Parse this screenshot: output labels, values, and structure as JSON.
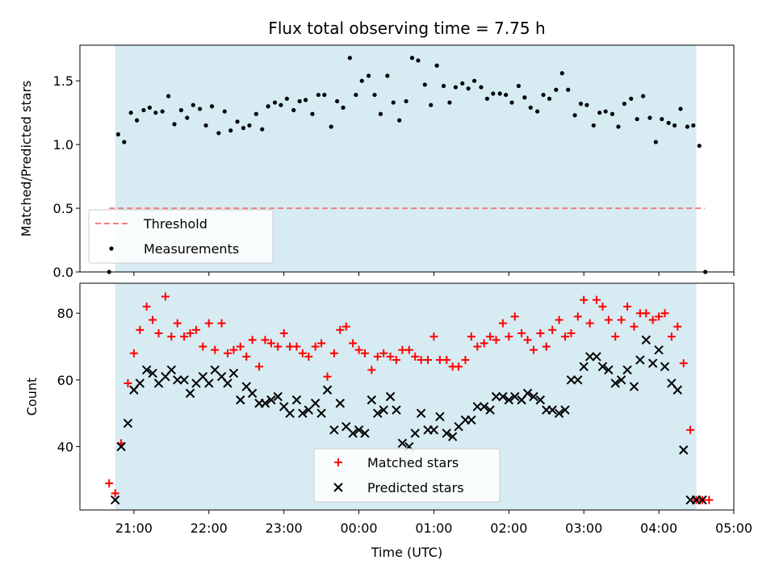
{
  "chart_data": {
    "type": "scatter",
    "title": "Flux total observing time = 7.75 h",
    "xlabel": "Time (UTC)",
    "x_ticks": [
      "21:00",
      "22:00",
      "23:00",
      "00:00",
      "01:00",
      "02:00",
      "03:00",
      "04:00",
      "05:00"
    ],
    "x_range_hours": [
      20.28,
      29.0
    ],
    "observing_window_hours": [
      20.75,
      28.5
    ],
    "colors": {
      "shade": "#add8e6",
      "threshold": "#f08080",
      "matched": "#ff0000",
      "predicted": "#000000",
      "measurements": "#000000"
    },
    "panels": [
      {
        "ylabel": "Matched/Predicted stars",
        "ylim": [
          0,
          1.78
        ],
        "y_ticks": [
          "0.0",
          "0.5",
          "1.0",
          "1.5"
        ],
        "y_tick_values": [
          0,
          0.5,
          1.0,
          1.5
        ],
        "legend": {
          "placement": "lower-left",
          "entries": [
            "Threshold",
            "Measurements"
          ]
        },
        "series": [
          {
            "name": "Threshold",
            "kind": "hline",
            "y": 0.5,
            "x": [
              20.67,
              29.0
            ]
          },
          {
            "name": "Measurements",
            "kind": "scatter",
            "marker": "dot",
            "x": [
              20.67,
              20.79,
              20.87,
              20.96,
              21.04,
              21.13,
              21.21,
              21.29,
              21.38,
              21.46,
              21.54,
              21.63,
              21.71,
              21.79,
              21.88,
              21.96,
              22.04,
              22.13,
              22.21,
              22.29,
              22.38,
              22.46,
              22.54,
              22.63,
              22.71,
              22.79,
              22.88,
              22.96,
              23.04,
              23.13,
              23.21,
              23.29,
              23.38,
              23.46,
              23.54,
              23.63,
              23.71,
              23.79,
              23.88,
              23.96,
              24.04,
              24.13,
              24.21,
              24.29,
              24.38,
              24.46,
              24.54,
              24.63,
              24.71,
              24.79,
              24.88,
              24.96,
              25.04,
              25.13,
              25.21,
              25.29,
              25.38,
              25.46,
              25.54,
              25.63,
              25.71,
              25.79,
              25.88,
              25.96,
              26.04,
              26.13,
              26.21,
              26.29,
              26.38,
              26.46,
              26.54,
              26.63,
              26.71,
              26.79,
              26.88,
              26.96,
              27.04,
              27.13,
              27.21,
              27.29,
              27.38,
              27.46,
              27.54,
              27.63,
              27.71,
              27.79,
              27.88,
              27.96,
              28.04,
              28.13,
              28.21,
              28.29,
              28.38,
              28.46,
              28.54,
              28.62
            ],
            "y": [
              0,
              1.08,
              1.02,
              1.25,
              1.19,
              1.27,
              1.29,
              1.25,
              1.26,
              1.38,
              1.16,
              1.27,
              1.21,
              1.31,
              1.28,
              1.15,
              1.3,
              1.09,
              1.26,
              1.11,
              1.18,
              1.13,
              1.15,
              1.24,
              1.12,
              1.3,
              1.33,
              1.31,
              1.36,
              1.27,
              1.34,
              1.35,
              1.24,
              1.39,
              1.39,
              1.14,
              1.34,
              1.29,
              1.68,
              1.39,
              1.5,
              1.54,
              1.39,
              1.24,
              1.54,
              1.33,
              1.19,
              1.34,
              1.68,
              1.66,
              1.47,
              1.31,
              1.62,
              1.46,
              1.33,
              1.45,
              1.48,
              1.44,
              1.5,
              1.45,
              1.36,
              1.4,
              1.4,
              1.39,
              1.33,
              1.46,
              1.37,
              1.29,
              1.26,
              1.39,
              1.36,
              1.43,
              1.56,
              1.43,
              1.23,
              1.32,
              1.31,
              1.15,
              1.25,
              1.26,
              1.24,
              1.14,
              1.32,
              1.36,
              1.2,
              1.38,
              1.21,
              1.02,
              1.2,
              1.17,
              1.15,
              1.28,
              1.14,
              1.15,
              0.99,
              0
            ]
          }
        ]
      },
      {
        "ylabel": "Count",
        "ylim": [
          21,
          89
        ],
        "y_ticks": [
          "40",
          "60",
          "80"
        ],
        "y_tick_values": [
          40,
          60,
          80
        ],
        "legend": {
          "placement": "lower-center",
          "entries": [
            "Matched stars",
            "Predicted stars"
          ]
        },
        "series": [
          {
            "name": "Matched stars",
            "kind": "scatter",
            "marker": "plus",
            "x": [
              20.67,
              20.75,
              20.83,
              20.92,
              21.0,
              21.08,
              21.17,
              21.25,
              21.33,
              21.42,
              21.5,
              21.58,
              21.67,
              21.75,
              21.83,
              21.92,
              22.0,
              22.08,
              22.17,
              22.25,
              22.33,
              22.42,
              22.5,
              22.58,
              22.67,
              22.75,
              22.83,
              22.92,
              23.0,
              23.08,
              23.17,
              23.25,
              23.33,
              23.42,
              23.5,
              23.58,
              23.67,
              23.75,
              23.83,
              23.92,
              24.0,
              24.08,
              24.17,
              24.25,
              24.33,
              24.42,
              24.5,
              24.58,
              24.67,
              24.75,
              24.83,
              24.92,
              25.0,
              25.08,
              25.17,
              25.25,
              25.33,
              25.42,
              25.5,
              25.58,
              25.67,
              25.75,
              25.83,
              25.92,
              26.0,
              26.08,
              26.17,
              26.25,
              26.33,
              26.42,
              26.5,
              26.58,
              26.67,
              26.75,
              26.83,
              26.92,
              27.0,
              27.08,
              27.17,
              27.25,
              27.33,
              27.42,
              27.5,
              27.58,
              27.67,
              27.75,
              27.83,
              27.92,
              28.0,
              28.08,
              28.17,
              28.25,
              28.33,
              28.42,
              28.5,
              28.58,
              28.67
            ],
            "y": [
              29,
              26,
              41,
              59,
              68,
              75,
              82,
              78,
              74,
              85,
              73,
              77,
              73,
              74,
              75,
              70,
              77,
              69,
              77,
              68,
              69,
              70,
              67,
              72,
              64,
              72,
              71,
              70,
              74,
              70,
              70,
              68,
              67,
              70,
              71,
              61,
              68,
              75,
              76,
              71,
              69,
              68,
              63,
              67,
              68,
              67,
              66,
              69,
              69,
              67,
              66,
              66,
              73,
              66,
              66,
              64,
              64,
              66,
              73,
              70,
              71,
              73,
              72,
              77,
              73,
              79,
              74,
              72,
              69,
              74,
              70,
              75,
              78,
              73,
              74,
              79,
              84,
              77,
              84,
              82,
              78,
              73,
              78,
              82,
              76,
              80,
              80,
              78,
              79,
              80,
              73,
              76,
              65,
              45,
              24,
              24,
              24
            ]
          },
          {
            "name": "Predicted stars",
            "kind": "scatter",
            "marker": "x",
            "x": [
              20.75,
              20.83,
              20.92,
              21.0,
              21.08,
              21.17,
              21.25,
              21.33,
              21.42,
              21.5,
              21.58,
              21.67,
              21.75,
              21.83,
              21.92,
              22.0,
              22.08,
              22.17,
              22.25,
              22.33,
              22.42,
              22.5,
              22.58,
              22.67,
              22.75,
              22.83,
              22.92,
              23.0,
              23.08,
              23.17,
              23.25,
              23.33,
              23.42,
              23.5,
              23.58,
              23.67,
              23.75,
              23.83,
              23.92,
              24.0,
              24.08,
              24.17,
              24.25,
              24.33,
              24.42,
              24.5,
              24.58,
              24.67,
              24.75,
              24.83,
              24.92,
              25.0,
              25.08,
              25.17,
              25.25,
              25.33,
              25.42,
              25.5,
              25.58,
              25.67,
              25.75,
              25.83,
              25.92,
              26.0,
              26.08,
              26.17,
              26.25,
              26.33,
              26.42,
              26.5,
              26.58,
              26.67,
              26.75,
              26.83,
              26.92,
              27.0,
              27.08,
              27.17,
              27.25,
              27.33,
              27.42,
              27.5,
              27.58,
              27.67,
              27.75,
              27.83,
              27.92,
              28.0,
              28.08,
              28.17,
              28.25,
              28.33,
              28.42,
              28.5,
              28.58
            ],
            "y": [
              24,
              40,
              47,
              57,
              59,
              63,
              62,
              59,
              61,
              63,
              60,
              60,
              56,
              59,
              61,
              59,
              63,
              61,
              59,
              62,
              54,
              58,
              56,
              53,
              53,
              54,
              55,
              52,
              50,
              54,
              50,
              51,
              53,
              50,
              57,
              45,
              53,
              46,
              44,
              45,
              44,
              54,
              50,
              51,
              55,
              51,
              41,
              40,
              44,
              50,
              45,
              45,
              49,
              44,
              43,
              46,
              48,
              48,
              52,
              52,
              51,
              55,
              55,
              54,
              55,
              54,
              56,
              55,
              54,
              51,
              51,
              50,
              51,
              60,
              60,
              64,
              67,
              67,
              64,
              63,
              59,
              60,
              63,
              58,
              66,
              72,
              65,
              69,
              64,
              59,
              57,
              39,
              24,
              24,
              24
            ]
          }
        ]
      }
    ]
  }
}
